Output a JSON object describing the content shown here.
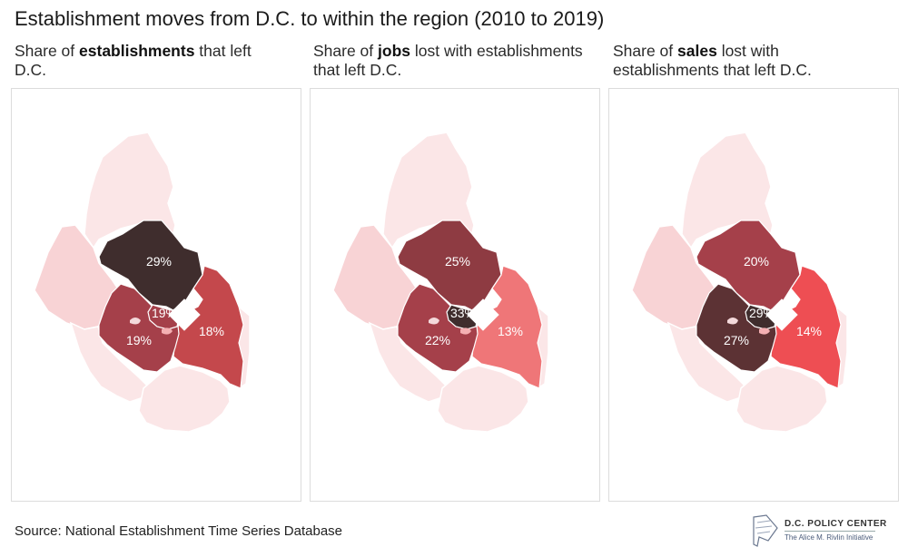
{
  "title": "Establishment moves from D.C. to within the region (2010 to 2019)",
  "panels": [
    {
      "prefix": "Share of ",
      "bold": "establishments",
      "suffix": " that left D.C.",
      "regions": {
        "north": {
          "value": "29%",
          "color": "#3f2d2d"
        },
        "east": {
          "value": "18%",
          "color": "#c4484c"
        },
        "southwest": {
          "value": "19%",
          "color": "#a5404a"
        },
        "center": {
          "value": "19%",
          "color": "#a5404a"
        }
      }
    },
    {
      "prefix": "Share of ",
      "bold": "jobs",
      "suffix": " lost with establishments that left D.C.",
      "regions": {
        "north": {
          "value": "25%",
          "color": "#8e3b42"
        },
        "east": {
          "value": "13%",
          "color": "#ef7678"
        },
        "southwest": {
          "value": "22%",
          "color": "#a5404a"
        },
        "center": {
          "value": "33%",
          "color": "#3f2d2d"
        }
      }
    },
    {
      "prefix": "Share of ",
      "bold": "sales",
      "suffix": " lost with establishments that left D.C.",
      "regions": {
        "north": {
          "value": "20%",
          "color": "#a5404a"
        },
        "east": {
          "value": "14%",
          "color": "#ee4e53"
        },
        "southwest": {
          "value": "27%",
          "color": "#5c3234"
        },
        "center": {
          "value": "29%",
          "color": "#3f2d2d"
        }
      }
    }
  ],
  "colors": {
    "outer_light": "#fbe6e7",
    "outer_mid": "#f8d3d5",
    "dc": "#ffffff"
  },
  "source": "Source: National Establishment Time Series Database",
  "logo": {
    "name": "D.C. POLICY CENTER",
    "subtitle": "The Alice M. Rivlin Initiative"
  }
}
